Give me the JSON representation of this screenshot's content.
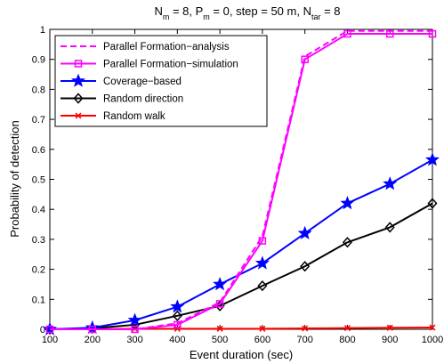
{
  "chart_data": {
    "type": "line",
    "title": {
      "parts": [
        {
          "t": "N"
        },
        {
          "t": "m",
          "sub": true
        },
        {
          "t": " = 8, P"
        },
        {
          "t": "m",
          "sub": true
        },
        {
          "t": " = 0, step = 50 m, N"
        },
        {
          "t": "tar",
          "sub": true
        },
        {
          "t": " = 8"
        }
      ]
    },
    "xlabel": "Event duration (sec)",
    "ylabel": "Probability of detection",
    "xlim": [
      100,
      1000
    ],
    "ylim": [
      0,
      1
    ],
    "xticks": [
      100,
      200,
      300,
      400,
      500,
      600,
      700,
      800,
      900,
      1000
    ],
    "yticks": [
      0,
      0.1,
      0.2,
      0.3,
      0.4,
      0.5,
      0.6,
      0.7,
      0.8,
      0.9,
      1
    ],
    "ytick_labels": [
      "0",
      "0.1",
      "0.2",
      "0.3",
      "0.4",
      "0.5",
      "0.6",
      "0.7",
      "0.8",
      "0.9",
      "1"
    ],
    "x": [
      100,
      200,
      300,
      400,
      500,
      600,
      700,
      800,
      900,
      1000
    ],
    "legend_position": "top-left",
    "grid": false,
    "series": [
      {
        "name": "Parallel Formation−analysis",
        "color": "#ff00ff",
        "dash": true,
        "marker": "none",
        "values": [
          0,
          0,
          0,
          0.02,
          0.09,
          0.31,
          0.91,
          0.995,
          0.995,
          0.995
        ]
      },
      {
        "name": "Parallel Formation−simulation",
        "color": "#ff00ff",
        "dash": false,
        "marker": "square",
        "values": [
          0,
          0,
          0,
          0.015,
          0.085,
          0.295,
          0.9,
          0.985,
          0.985,
          0.985
        ]
      },
      {
        "name": "Coverage−based",
        "color": "#0000ff",
        "dash": false,
        "marker": "star",
        "values": [
          0,
          0.005,
          0.03,
          0.075,
          0.15,
          0.22,
          0.32,
          0.42,
          0.485,
          0.565
        ]
      },
      {
        "name": "Random direction",
        "color": "#000000",
        "dash": false,
        "marker": "diamond",
        "values": [
          0,
          0.003,
          0.015,
          0.045,
          0.078,
          0.145,
          0.21,
          0.29,
          0.34,
          0.42
        ]
      },
      {
        "name": "Random walk",
        "color": "#ff0000",
        "dash": false,
        "marker": "x",
        "values": [
          0,
          0,
          0.002,
          0.002,
          0.002,
          0.002,
          0.003,
          0.004,
          0.005,
          0.006
        ]
      }
    ]
  }
}
